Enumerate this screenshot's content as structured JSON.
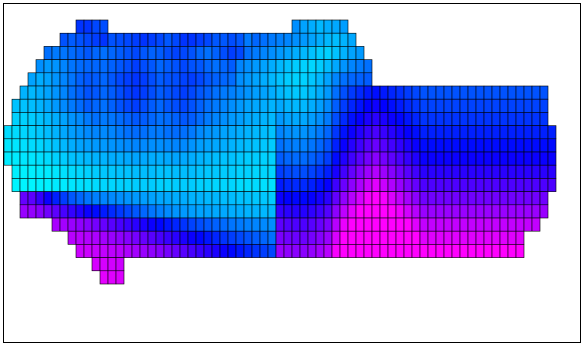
{
  "chart_data": {
    "type": "heatmap",
    "colormap": "cool",
    "colorscale": [
      "#00ffff",
      "#0000ff",
      "#ff00ff"
    ],
    "value_range": [
      0,
      1
    ],
    "grid": true,
    "layout": {
      "ncols": 69,
      "nrows": 20
    },
    "rows": [
      {
        "start": 9,
        "end": 13,
        "values": [
          0.4,
          0.4,
          0.36,
          0.35
        ]
      },
      {
        "start": 7,
        "end": 31,
        "values": [
          0.34,
          0.32,
          0.34,
          0.36,
          0.38,
          0.4,
          0.34,
          0.35,
          0.36,
          0.38,
          0.4,
          0.38,
          0.36,
          0.33,
          0.36,
          0.4,
          0.4,
          0.38,
          0.36,
          0.33,
          0.33,
          0.35,
          0.33,
          0.26,
          0.24
        ]
      },
      {
        "start": 5,
        "end": 43,
        "values": [
          0.28,
          0.26,
          0.27,
          0.29,
          0.31,
          0.33,
          0.3,
          0.28,
          0.3,
          0.32,
          0.34,
          0.36,
          0.33,
          0.31,
          0.32,
          0.35,
          0.37,
          0.36,
          0.34,
          0.3,
          0.28,
          0.31,
          0.35,
          0.38,
          0.36,
          0.32,
          0.3,
          0.29,
          0.29,
          0.31,
          0.31,
          0.33,
          0.28,
          0.3,
          0.32,
          0.32,
          0.35,
          0.34
        ]
      },
      {
        "start": 4,
        "end": 43,
        "values": [
          0.22,
          0.2,
          0.21,
          0.24,
          0.27,
          0.29,
          0.3,
          0.3,
          0.29,
          0.31,
          0.33,
          0.35,
          0.38,
          0.35,
          0.33,
          0.3,
          0.32,
          0.34,
          0.36,
          0.34,
          0.33,
          0.3,
          0.28,
          0.3,
          0.32,
          0.33,
          0.33,
          0.3,
          0.28,
          0.26,
          0.25,
          0.21,
          0.19,
          0.17,
          0.19,
          0.21,
          0.23,
          0.25,
          0.22
        ]
      },
      {
        "start": 3,
        "end": 43,
        "values": [
          0.18,
          0.16,
          0.18,
          0.21,
          0.24,
          0.27,
          0.31,
          0.33,
          0.32,
          0.3,
          0.33,
          0.36,
          0.38,
          0.4,
          0.38,
          0.35,
          0.32,
          0.34,
          0.35,
          0.37,
          0.38,
          0.36,
          0.33,
          0.31,
          0.3,
          0.29,
          0.3,
          0.27,
          0.25,
          0.23,
          0.21,
          0.18,
          0.15,
          0.14,
          0.16,
          0.17,
          0.19,
          0.21,
          0.23,
          0.2
        ]
      },
      {
        "start": 2,
        "end": 42,
        "values": [
          0.15,
          0.14,
          0.16,
          0.18,
          0.21,
          0.24,
          0.28,
          0.31,
          0.34,
          0.33,
          0.3,
          0.32,
          0.35,
          0.38,
          0.4,
          0.38,
          0.35,
          0.32,
          0.34,
          0.36,
          0.38,
          0.36,
          0.33,
          0.31,
          0.28,
          0.26,
          0.25,
          0.23,
          0.21,
          0.19,
          0.18,
          0.16,
          0.14,
          0.13,
          0.14,
          0.16,
          0.18,
          0.2,
          0.22,
          0.24
        ]
      },
      {
        "start": 1,
        "end": 34,
        "values": [
          0.12,
          0.12,
          0.13,
          0.15,
          0.17,
          0.2,
          0.23,
          0.26,
          0.29,
          0.32,
          0.3,
          0.28,
          0.31,
          0.34,
          0.36,
          0.38,
          0.35,
          0.32,
          0.3,
          0.33,
          0.35,
          0.36,
          0.34,
          0.31,
          0.28,
          0.26,
          0.24,
          0.22,
          0.2,
          0.18,
          0.17,
          0.16,
          0.15
        ]
      },
      {
        "start": 1,
        "end": 34,
        "values": [
          0.09,
          0.09,
          0.1,
          0.12,
          0.14,
          0.16,
          0.18,
          0.21,
          0.23,
          0.26,
          0.28,
          0.26,
          0.27,
          0.29,
          0.31,
          0.33,
          0.32,
          0.3,
          0.28,
          0.29,
          0.31,
          0.33,
          0.32,
          0.29,
          0.26,
          0.24,
          0.22,
          0.2,
          0.19,
          0.17,
          0.16,
          0.15,
          0.14
        ]
      },
      {
        "start": 0,
        "end": 34,
        "values": [
          0.07,
          0.07,
          0.08,
          0.09,
          0.11,
          0.13,
          0.15,
          0.17,
          0.19,
          0.21,
          0.23,
          0.24,
          0.23,
          0.24,
          0.26,
          0.28,
          0.29,
          0.28,
          0.26,
          0.26,
          0.28,
          0.29,
          0.28,
          0.26,
          0.23,
          0.21,
          0.2,
          0.18,
          0.17,
          0.16,
          0.15,
          0.14,
          0.13,
          0.12
        ]
      },
      {
        "start": 0,
        "end": 34,
        "values": [
          0.05,
          0.05,
          0.06,
          0.07,
          0.08,
          0.1,
          0.12,
          0.14,
          0.16,
          0.18,
          0.19,
          0.2,
          0.2,
          0.21,
          0.22,
          0.23,
          0.24,
          0.23,
          0.22,
          0.22,
          0.23,
          0.24,
          0.23,
          0.21,
          0.19,
          0.18,
          0.17,
          0.16,
          0.15,
          0.14,
          0.13,
          0.12,
          0.11,
          0.1
        ]
      },
      {
        "start": 0,
        "end": 34,
        "values": [
          0.04,
          0.04,
          0.05,
          0.05,
          0.06,
          0.07,
          0.09,
          0.1,
          0.12,
          0.13,
          0.14,
          0.15,
          0.15,
          0.16,
          0.16,
          0.17,
          0.18,
          0.17,
          0.16,
          0.16,
          0.17,
          0.18,
          0.17,
          0.16,
          0.15,
          0.14,
          0.13,
          0.12,
          0.12,
          0.11,
          0.1,
          0.1,
          0.09,
          0.09
        ]
      },
      {
        "start": 1,
        "end": 34,
        "values": [
          0.03,
          0.03,
          0.03,
          0.04,
          0.04,
          0.05,
          0.06,
          0.07,
          0.08,
          0.09,
          0.1,
          0.11,
          0.11,
          0.12,
          0.12,
          0.13,
          0.13,
          0.13,
          0.12,
          0.12,
          0.13,
          0.13,
          0.13,
          0.12,
          0.11,
          0.11,
          0.1,
          0.1,
          0.09,
          0.09,
          0.08,
          0.08,
          0.08
        ]
      },
      {
        "start": 1,
        "end": 34,
        "values": [
          0.02,
          0.02,
          0.02,
          0.03,
          0.03,
          0.04,
          0.04,
          0.05,
          0.06,
          0.06,
          0.07,
          0.08,
          0.08,
          0.09,
          0.09,
          0.1,
          0.1,
          0.1,
          0.09,
          0.09,
          0.1,
          0.1,
          0.1,
          0.09,
          0.09,
          0.08,
          0.08,
          0.08,
          0.07,
          0.07,
          0.07,
          0.06,
          0.06
        ]
      },
      {
        "start": 2,
        "end": 34,
        "values": [
          0.7,
          0.68,
          0.6,
          0.52,
          0.44,
          0.38,
          0.33,
          0.3,
          0.27,
          0.25,
          0.24,
          0.23,
          0.22,
          0.21,
          0.2,
          0.19,
          0.18,
          0.17,
          0.17,
          0.16,
          0.16,
          0.15,
          0.15,
          0.14,
          0.14,
          0.13,
          0.13,
          0.12,
          0.12,
          0.11,
          0.11,
          0.1
        ]
      },
      {
        "start": 2,
        "end": 34,
        "values": [
          0.8,
          0.79,
          0.76,
          0.72,
          0.68,
          0.64,
          0.6,
          0.56,
          0.52,
          0.48,
          0.45,
          0.42,
          0.39,
          0.36,
          0.33,
          0.3,
          0.27,
          0.25,
          0.23,
          0.21,
          0.2,
          0.19,
          0.18,
          0.18,
          0.17,
          0.17,
          0.16,
          0.16,
          0.15,
          0.15,
          0.14,
          0.14
        ]
      },
      {
        "start": 6,
        "end": 34,
        "values": [
          0.83,
          0.82,
          0.8,
          0.78,
          0.76,
          0.73,
          0.7,
          0.67,
          0.64,
          0.61,
          0.58,
          0.55,
          0.52,
          0.49,
          0.46,
          0.43,
          0.4,
          0.37,
          0.35,
          0.33,
          0.31,
          0.29,
          0.27,
          0.26,
          0.25,
          0.24,
          0.23,
          0.22
        ]
      },
      {
        "start": 8,
        "end": 34,
        "values": [
          0.86,
          0.86,
          0.85,
          0.84,
          0.82,
          0.8,
          0.78,
          0.76,
          0.73,
          0.7,
          0.67,
          0.64,
          0.61,
          0.58,
          0.55,
          0.52,
          0.49,
          0.46,
          0.43,
          0.4,
          0.38,
          0.36,
          0.34,
          0.32,
          0.3,
          0.28
        ]
      },
      {
        "start": 9,
        "end": 34,
        "values": [
          0.9,
          0.9,
          0.89,
          0.88,
          0.87,
          0.86,
          0.84,
          0.82,
          0.8,
          0.78,
          0.76,
          0.73,
          0.7,
          0.67,
          0.64,
          0.61,
          0.58,
          0.55,
          0.52,
          0.49,
          0.46,
          0.43,
          0.4,
          0.38,
          0.36
        ]
      },
      {
        "start": 11,
        "end": 15,
        "values": [
          0.92,
          0.92,
          0.91,
          0.9
        ]
      },
      {
        "start": 12,
        "end": 15,
        "values": [
          0.95,
          0.94,
          0.93
        ]
      }
    ],
    "rows_right": [
      {
        "start": 36,
        "end": 43,
        "values": [
          0.22,
          0.18,
          0.16,
          0.14,
          0.16,
          0.17,
          0.19
        ]
      },
      {
        "start": 31,
        "end": 44,
        "values": [
          0.3,
          0.28,
          0.26,
          0.25,
          0.24,
          0.22,
          0.2,
          0.18,
          0.16,
          0.14,
          0.13,
          0.15,
          0.17
        ]
      },
      {
        "start": 30,
        "end": 45,
        "values": [
          0.28,
          0.26,
          0.24,
          0.22,
          0.2,
          0.18,
          0.16,
          0.14,
          0.12,
          0.1,
          0.09,
          0.12,
          0.15,
          0.18,
          0.2
        ]
      },
      {
        "start": 29,
        "end": 46,
        "values": [
          0.24,
          0.22,
          0.2,
          0.18,
          0.16,
          0.14,
          0.12,
          0.1,
          0.09,
          0.08,
          0.1,
          0.13,
          0.17,
          0.21,
          0.24,
          0.26,
          0.28
        ]
      },
      {
        "start": 29,
        "end": 46,
        "values": [
          0.22,
          0.2,
          0.18,
          0.16,
          0.14,
          0.12,
          0.1,
          0.09,
          0.09,
          0.11,
          0.14,
          0.18,
          0.24,
          0.28,
          0.3,
          0.31,
          0.32
        ]
      }
    ]
  }
}
